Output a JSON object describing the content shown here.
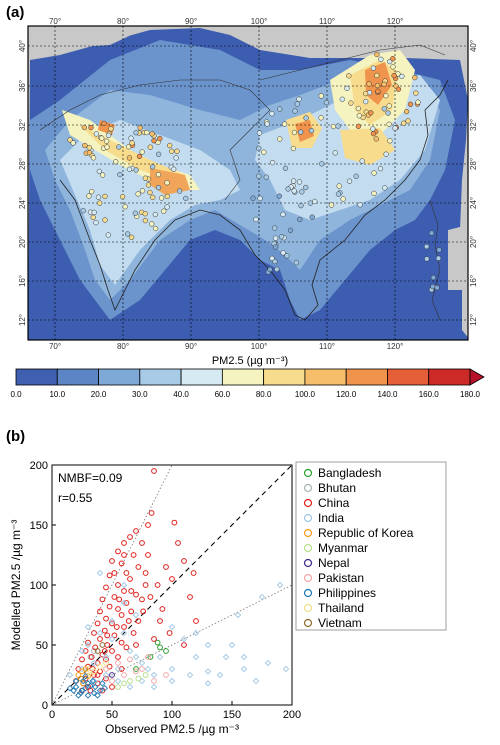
{
  "panel_a_label": "(a)",
  "panel_b_label": "(b)",
  "map": {
    "lon_ticks": [
      "70°",
      "80°",
      "90°",
      "100°",
      "110°",
      "120°"
    ],
    "lat_ticks": [
      "40°",
      "36°",
      "32°",
      "28°",
      "24°",
      "20°",
      "16°",
      "12°"
    ],
    "colorbar_title": "PM2.5 (µg m⁻³)",
    "colorbar_levels": [
      "0.0",
      "10.0",
      "20.0",
      "30.0",
      "40.0",
      "60.0",
      "80.0",
      "100.0",
      "120.0",
      "140.0",
      "160.0",
      "180.0"
    ],
    "colorbar_colors": [
      "#3f5fb0",
      "#5b85c4",
      "#7ea8d6",
      "#a7cbe6",
      "#d6eaf3",
      "#f5f3c0",
      "#f7dc8e",
      "#f6be6a",
      "#f0934d",
      "#e45f38",
      "#cc2a26"
    ]
  },
  "chart_data": {
    "type": "scatter",
    "title": "",
    "xlabel": "Observed PM2.5 /µg m⁻³",
    "ylabel": "Modelled PM2.5 /µg m⁻³",
    "xlim": [
      0,
      200
    ],
    "ylim": [
      0,
      200
    ],
    "x_ticks": [
      "0",
      "50",
      "100",
      "150",
      "200"
    ],
    "y_ticks": [
      "0",
      "50",
      "100",
      "150",
      "200"
    ],
    "annotations": [
      "NMBF=0.09",
      "r=0.55"
    ],
    "reference_lines": [
      {
        "style": "dashed",
        "slope": 1
      },
      {
        "style": "dotted",
        "slope": 2
      },
      {
        "style": "dotted",
        "slope": 0.5
      }
    ],
    "legend_position": "right",
    "series": [
      {
        "name": "Bangladesh",
        "color": "#2ca02c",
        "points": [
          [
            88,
            52
          ],
          [
            90,
            48
          ],
          [
            95,
            45
          ],
          [
            82,
            40
          ],
          [
            70,
            30
          ]
        ]
      },
      {
        "name": "Bhutan",
        "color": "#aab4b4",
        "points": [
          [
            32,
            40
          ],
          [
            35,
            45
          ]
        ]
      },
      {
        "name": "China",
        "color": "#e0201c",
        "points": [
          [
            85,
            195
          ],
          [
            83,
            160
          ],
          [
            80,
            150
          ],
          [
            70,
            145
          ],
          [
            65,
            140
          ],
          [
            102,
            152
          ],
          [
            60,
            135
          ],
          [
            75,
            135
          ],
          [
            55,
            128
          ],
          [
            68,
            125
          ],
          [
            80,
            125
          ],
          [
            50,
            120
          ],
          [
            58,
            118
          ],
          [
            72,
            115
          ],
          [
            62,
            110
          ],
          [
            48,
            108
          ],
          [
            65,
            105
          ],
          [
            55,
            100
          ],
          [
            78,
            100
          ],
          [
            45,
            98
          ],
          [
            60,
            95
          ],
          [
            70,
            92
          ],
          [
            52,
            90
          ],
          [
            42,
            88
          ],
          [
            75,
            88
          ],
          [
            62,
            85
          ],
          [
            48,
            82
          ],
          [
            55,
            80
          ],
          [
            40,
            78
          ],
          [
            66,
            78
          ],
          [
            58,
            75
          ],
          [
            45,
            72
          ],
          [
            72,
            70
          ],
          [
            38,
            68
          ],
          [
            50,
            68
          ],
          [
            60,
            65
          ],
          [
            44,
            62
          ],
          [
            35,
            60
          ],
          [
            68,
            60
          ],
          [
            52,
            58
          ],
          [
            40,
            55
          ],
          [
            30,
            52
          ],
          [
            58,
            52
          ],
          [
            46,
            50
          ],
          [
            36,
            48
          ],
          [
            62,
            48
          ],
          [
            28,
            45
          ],
          [
            50,
            45
          ],
          [
            42,
            42
          ],
          [
            33,
            40
          ],
          [
            55,
            40
          ],
          [
            25,
            38
          ],
          [
            45,
            38
          ],
          [
            38,
            35
          ],
          [
            30,
            32
          ],
          [
            48,
            32
          ],
          [
            22,
            30
          ],
          [
            40,
            28
          ],
          [
            35,
            25
          ],
          [
            28,
            22
          ],
          [
            45,
            22
          ],
          [
            20,
            20
          ],
          [
            38,
            18
          ],
          [
            30,
            15
          ],
          [
            50,
            15
          ],
          [
            25,
            12
          ],
          [
            42,
            12
          ],
          [
            105,
            135
          ],
          [
            110,
            120
          ],
          [
            95,
            115
          ],
          [
            118,
            110
          ],
          [
            100,
            105
          ],
          [
            88,
            100
          ],
          [
            115,
            90
          ],
          [
            92,
            80
          ],
          [
            120,
            70
          ],
          [
            98,
            60
          ],
          [
            110,
            50
          ],
          [
            85,
            55
          ],
          [
            90,
            70
          ],
          [
            82,
            90
          ],
          [
            78,
            110
          ],
          [
            64,
            70
          ],
          [
            56,
            88
          ],
          [
            46,
            58
          ],
          [
            34,
            30
          ],
          [
            26,
            18
          ],
          [
            32,
            12
          ],
          [
            58,
            30
          ],
          [
            70,
            50
          ],
          [
            76,
            78
          ],
          [
            66,
            95
          ],
          [
            54,
            65
          ],
          [
            44,
            45
          ],
          [
            38,
            25
          ],
          [
            52,
            110
          ],
          [
            60,
            125
          ]
        ]
      },
      {
        "name": "India",
        "color": "#9fc7e6",
        "points": [
          [
            40,
            110
          ],
          [
            50,
            70
          ],
          [
            60,
            100
          ],
          [
            60,
            60
          ],
          [
            70,
            40
          ],
          [
            80,
            30
          ],
          [
            90,
            40
          ],
          [
            100,
            30
          ],
          [
            120,
            40
          ],
          [
            130,
            28
          ],
          [
            145,
            40
          ],
          [
            150,
            50
          ],
          [
            155,
            75
          ],
          [
            160,
            40
          ],
          [
            170,
            20
          ],
          [
            175,
            90
          ],
          [
            190,
            100
          ],
          [
            120,
            60
          ],
          [
            110,
            55
          ],
          [
            85,
            25
          ],
          [
            75,
            35
          ],
          [
            65,
            45
          ],
          [
            55,
            30
          ],
          [
            45,
            40
          ],
          [
            35,
            35
          ],
          [
            30,
            50
          ],
          [
            25,
            30
          ],
          [
            20,
            20
          ],
          [
            15,
            25
          ],
          [
            35,
            20
          ],
          [
            45,
            25
          ],
          [
            55,
            20
          ],
          [
            65,
            15
          ],
          [
            75,
            20
          ],
          [
            85,
            15
          ],
          [
            100,
            20
          ],
          [
            115,
            25
          ],
          [
            130,
            18
          ],
          [
            140,
            25
          ],
          [
            160,
            30
          ],
          [
            180,
            35
          ],
          [
            195,
            30
          ],
          [
            40,
            60
          ],
          [
            50,
            55
          ],
          [
            30,
            65
          ],
          [
            25,
            45
          ],
          [
            60,
            85
          ],
          [
            70,
            75
          ],
          [
            100,
            65
          ],
          [
            130,
            50
          ]
        ]
      },
      {
        "name": "Republic of Korea",
        "color": "#f59b1c",
        "points": [
          [
            22,
            25
          ],
          [
            25,
            28
          ],
          [
            28,
            30
          ],
          [
            24,
            22
          ],
          [
            30,
            24
          ],
          [
            26,
            18
          ]
        ]
      },
      {
        "name": "Myanmar",
        "color": "#b6df8a",
        "points": [
          [
            60,
            18
          ],
          [
            65,
            20
          ],
          [
            72,
            22
          ],
          [
            78,
            25
          ],
          [
            55,
            15
          ]
        ]
      },
      {
        "name": "Nepal",
        "color": "#3f2a8c",
        "points": [
          [
            50,
            25
          ]
        ]
      },
      {
        "name": "Pakistan",
        "color": "#f4a7a7",
        "points": [
          [
            50,
            20
          ],
          [
            60,
            25
          ],
          [
            70,
            28
          ],
          [
            55,
            35
          ],
          [
            65,
            38
          ],
          [
            75,
            30
          ],
          [
            85,
            20
          ],
          [
            95,
            25
          ],
          [
            45,
            30
          ],
          [
            80,
            40
          ]
        ]
      },
      {
        "name": "Philippines",
        "color": "#1f77b4",
        "points": [
          [
            20,
            15
          ],
          [
            25,
            12
          ],
          [
            30,
            18
          ],
          [
            35,
            10
          ],
          [
            28,
            14
          ],
          [
            22,
            8
          ],
          [
            40,
            12
          ],
          [
            32,
            16
          ],
          [
            18,
            12
          ],
          [
            24,
            10
          ],
          [
            36,
            15
          ],
          [
            30,
            8
          ],
          [
            26,
            20
          ],
          [
            34,
            20
          ],
          [
            42,
            18
          ],
          [
            20,
            20
          ],
          [
            15,
            14
          ],
          [
            38,
            8
          ],
          [
            44,
            14
          ],
          [
            28,
            24
          ]
        ]
      },
      {
        "name": "Thailand",
        "color": "#f0e08a",
        "points": [
          [
            30,
            30
          ],
          [
            35,
            28
          ],
          [
            40,
            32
          ],
          [
            32,
            25
          ],
          [
            45,
            35
          ]
        ]
      },
      {
        "name": "Vietnam",
        "color": "#8c6a2c",
        "points": [
          [
            38,
            45
          ],
          [
            42,
            50
          ]
        ]
      }
    ]
  }
}
